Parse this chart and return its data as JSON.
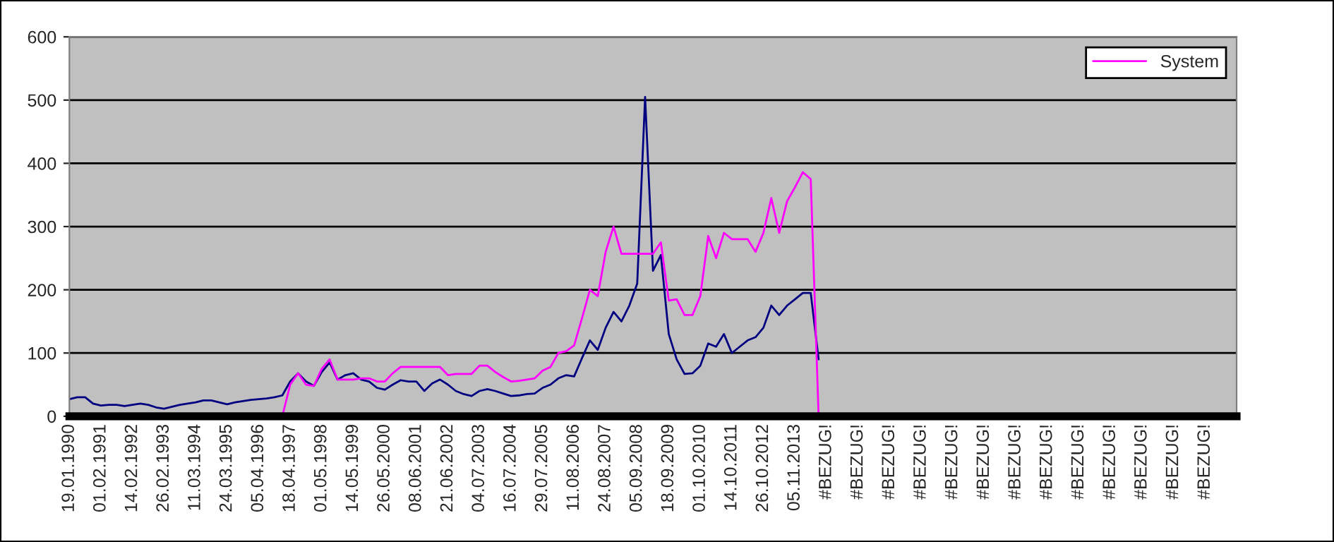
{
  "chart_data": {
    "type": "line",
    "categories": [
      "19.01.1990",
      null,
      null,
      null,
      "01.02.1991",
      null,
      null,
      null,
      "14.02.1992",
      null,
      null,
      null,
      "26.02.1993",
      null,
      null,
      null,
      "11.03.1994",
      null,
      null,
      null,
      "24.03.1995",
      null,
      null,
      null,
      "05.04.1996",
      null,
      null,
      null,
      "18.04.1997",
      null,
      null,
      null,
      "01.05.1998",
      null,
      null,
      null,
      "14.05.1999",
      null,
      null,
      null,
      "26.05.2000",
      null,
      null,
      null,
      "08.06.2001",
      null,
      null,
      null,
      "21.06.2002",
      null,
      null,
      null,
      "04.07.2003",
      null,
      null,
      null,
      "16.07.2004",
      null,
      null,
      null,
      "29.07.2005",
      null,
      null,
      null,
      "11.08.2006",
      null,
      null,
      null,
      "24.08.2007",
      null,
      null,
      null,
      "05.09.2008",
      null,
      null,
      null,
      "18.09.2009",
      null,
      null,
      null,
      "01.10.2010",
      null,
      null,
      null,
      "14.10.2011",
      null,
      null,
      null,
      "26.10.2012",
      null,
      null,
      null,
      "05.11.2013",
      null,
      null,
      null,
      "#BEZUG!",
      null,
      null,
      null,
      "#BEZUG!",
      null,
      null,
      null,
      "#BEZUG!",
      null,
      null,
      null,
      "#BEZUG!",
      null,
      null,
      null,
      "#BEZUG!",
      null,
      null,
      null,
      "#BEZUG!",
      null,
      null,
      null,
      "#BEZUG!",
      null,
      null,
      null,
      "#BEZUG!",
      null,
      null,
      null,
      "#BEZUG!",
      null,
      null,
      null,
      "#BEZUG!",
      null,
      null,
      null,
      "#BEZUG!",
      null,
      null,
      null,
      "#BEZUG!",
      null,
      null,
      null,
      "#BEZUG!",
      null,
      null,
      null
    ],
    "series": [
      {
        "color": "#000080",
        "values": [
          27,
          30,
          30,
          20,
          17,
          18,
          18,
          16,
          18,
          20,
          18,
          14,
          12,
          15,
          18,
          20,
          22,
          25,
          25,
          22,
          19,
          22,
          24,
          26,
          27,
          28,
          30,
          33,
          55,
          68,
          55,
          48,
          70,
          85,
          58,
          65,
          68,
          58,
          55,
          45,
          42,
          50,
          57,
          55,
          55,
          40,
          52,
          58,
          50,
          40,
          35,
          32,
          40,
          43,
          40,
          36,
          32,
          33,
          35,
          36,
          45,
          50,
          60,
          65,
          63,
          92,
          120,
          105,
          140,
          165,
          150,
          175,
          210,
          505,
          230,
          255,
          130,
          90,
          67,
          68,
          80,
          115,
          110,
          130,
          100,
          110,
          120,
          125,
          140,
          175,
          160,
          175,
          185,
          195,
          195,
          90,
          null,
          null,
          null,
          null,
          null,
          null,
          null,
          null,
          null,
          null,
          null,
          null,
          null,
          null,
          null,
          null,
          null,
          null,
          null,
          null,
          null,
          null,
          null,
          null,
          null,
          null,
          null,
          null,
          null,
          null,
          null,
          null,
          null,
          null,
          null,
          null,
          null,
          null,
          null,
          null,
          null,
          null,
          null,
          null,
          null,
          null,
          null,
          null,
          null,
          null,
          null,
          null
        ]
      },
      {
        "name": "System",
        "color": "#ff00ff",
        "values": [
          null,
          null,
          null,
          null,
          null,
          null,
          null,
          null,
          null,
          null,
          null,
          null,
          null,
          null,
          null,
          null,
          null,
          null,
          null,
          null,
          null,
          null,
          null,
          null,
          null,
          null,
          null,
          0,
          50,
          68,
          50,
          48,
          75,
          90,
          58,
          58,
          58,
          60,
          60,
          55,
          55,
          68,
          78,
          78,
          78,
          78,
          78,
          78,
          65,
          67,
          67,
          67,
          80,
          80,
          70,
          62,
          55,
          56,
          58,
          60,
          72,
          78,
          100,
          103,
          112,
          155,
          200,
          190,
          260,
          300,
          257,
          257,
          257,
          257,
          257,
          275,
          183,
          185,
          160,
          160,
          190,
          285,
          250,
          290,
          280,
          280,
          280,
          260,
          290,
          345,
          290,
          340,
          362,
          386,
          375,
          0,
          null,
          null,
          null,
          null,
          null,
          null,
          null,
          null,
          null,
          null,
          null,
          null,
          null,
          null,
          null,
          null,
          null,
          null,
          null,
          null,
          null,
          null,
          null,
          null,
          null,
          null,
          null,
          null,
          null,
          null,
          null,
          null,
          null,
          null,
          null,
          null,
          null,
          null,
          null,
          null,
          null,
          null,
          null,
          null,
          null,
          null,
          null,
          null,
          null,
          null,
          null,
          null
        ]
      }
    ],
    "ylim": [
      0,
      600
    ],
    "yticks": [
      0,
      100,
      200,
      300,
      400,
      500,
      600
    ],
    "grid": "y",
    "legend": "top right",
    "marker": "none",
    "line_style": "solid"
  }
}
